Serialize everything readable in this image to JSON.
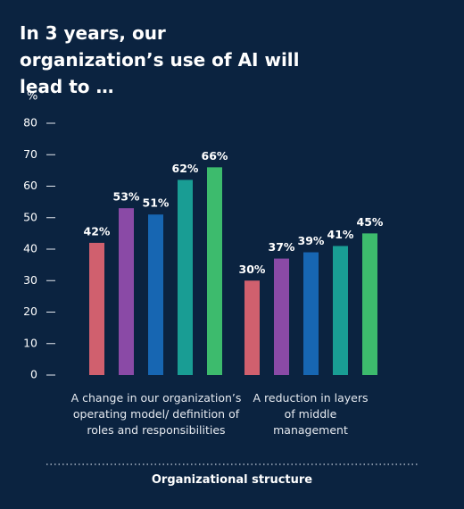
{
  "chart_data": {
    "type": "bar",
    "title": "In 3 years, our organization’s use of AI will lead to …",
    "ylabel": "%",
    "xlabel": "Organizational structure",
    "categories": [
      "A change in our organization’s operating model/ definition of roles and responsibilities",
      "A reduction in layers of middle management"
    ],
    "series": [
      {
        "color": "#d0606e",
        "values": [
          42,
          30
        ],
        "value_labels": [
          "42%",
          "30%"
        ]
      },
      {
        "color": "#8a4aa6",
        "values": [
          53,
          37
        ],
        "value_labels": [
          "53%",
          "37%"
        ]
      },
      {
        "color": "#1766b2",
        "values": [
          51,
          39
        ],
        "value_labels": [
          "51%",
          "39%"
        ]
      },
      {
        "color": "#199d94",
        "values": [
          62,
          41
        ],
        "value_labels": [
          "62%",
          "41%"
        ]
      },
      {
        "color": "#3dbb6d",
        "values": [
          66,
          45
        ],
        "value_labels": [
          "66%",
          "45%"
        ]
      }
    ],
    "ylim": [
      0,
      80
    ],
    "yticks": [
      0,
      10,
      20,
      30,
      40,
      50,
      60,
      70,
      80
    ],
    "grid": false
  }
}
